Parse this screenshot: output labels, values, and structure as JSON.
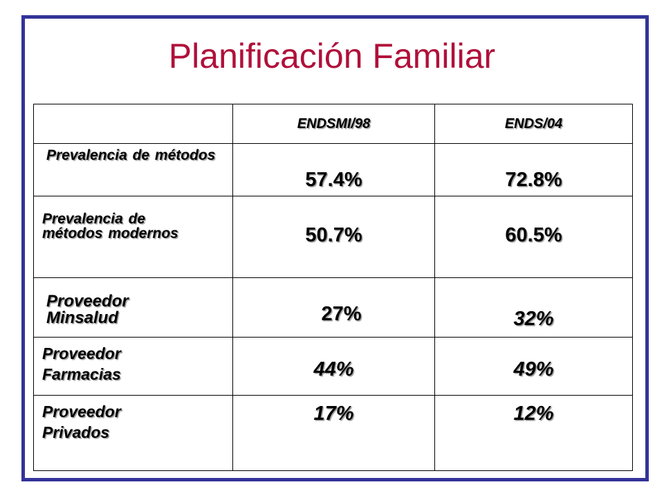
{
  "slide": {
    "title": "Planificación Familiar"
  },
  "table": {
    "headers": [
      "",
      "ENDSMI/98",
      "ENDS/04"
    ],
    "rows": [
      {
        "label": "Prevalencia de métodos",
        "endsmi98": "57.4%",
        "ends04": "72.8%"
      },
      {
        "label": "Prevalencia de métodos modernos",
        "endsmi98": "50.7%",
        "ends04": "60.5%"
      },
      {
        "label": "Proveedor Minsalud",
        "endsmi98": "27%",
        "ends04": "32%"
      },
      {
        "label": "Proveedor Farmacias",
        "endsmi98": "44%",
        "ends04": "49%"
      },
      {
        "label": "Proveedor Privados",
        "endsmi98": "17%",
        "ends04": "12%"
      }
    ]
  },
  "colors": {
    "border": "#333399",
    "title": "#b0103a"
  }
}
